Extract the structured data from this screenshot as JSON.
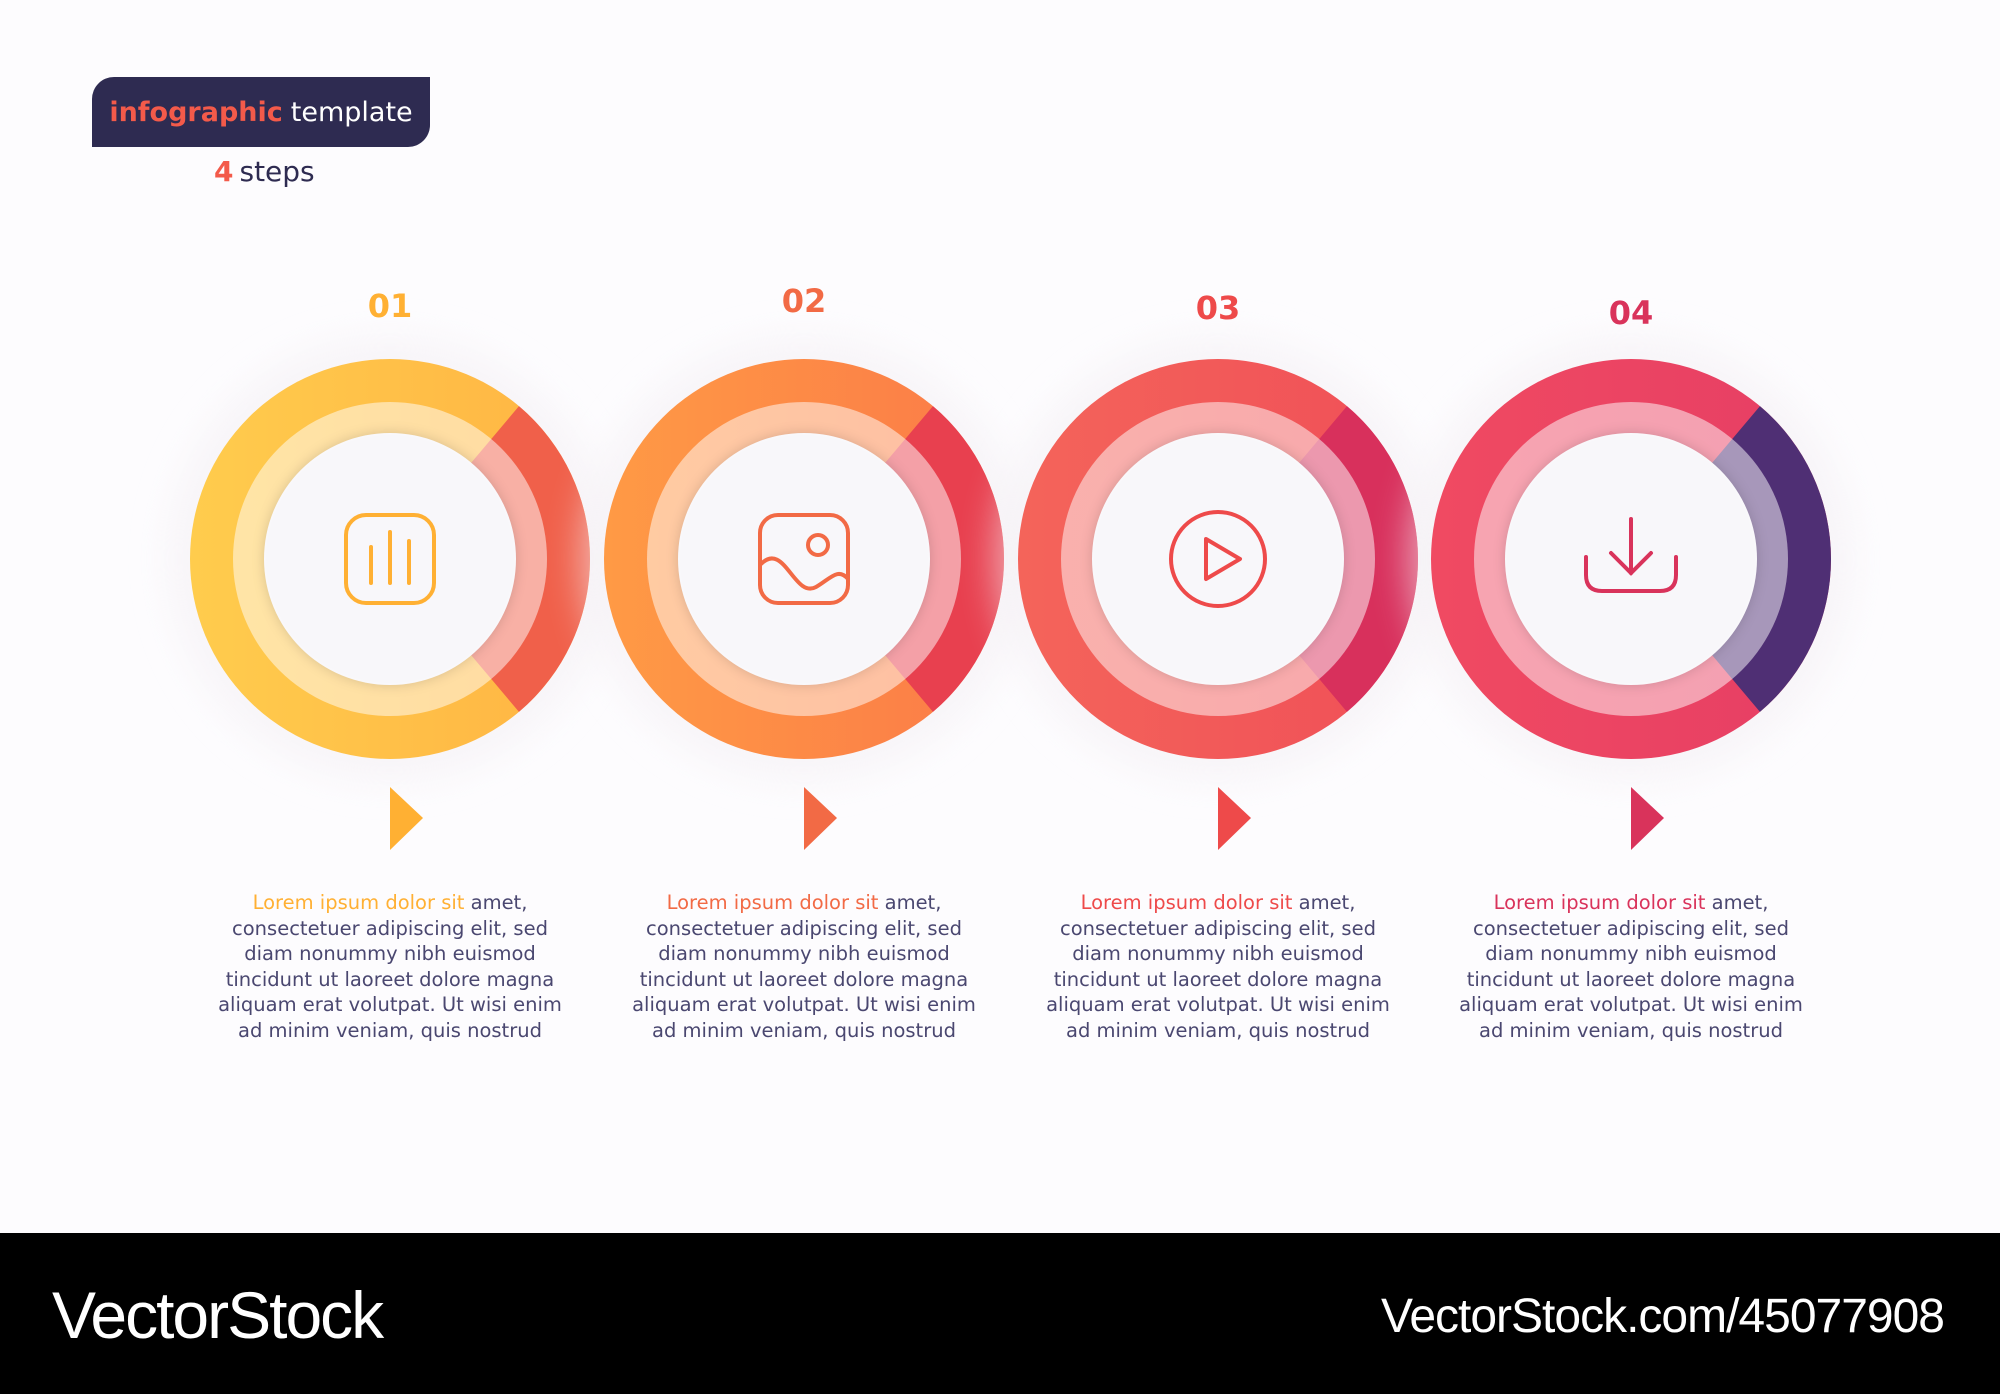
{
  "header": {
    "title_accent": "infographic",
    "title_rest": "template",
    "steps_count": "4",
    "steps_word": "steps"
  },
  "colors": {
    "header_bg": "#2e2b51",
    "accent": "#f35a4a",
    "body_text": "#4a4770"
  },
  "steps": [
    {
      "number": "01",
      "icon": "bar-chart-icon",
      "color_main": "#ffb443",
      "color_light": "#ffcc4d",
      "color_segment": "#f0604a",
      "highlight_color": "#ffb033",
      "highlight": "Lorem ipsum dolor sit",
      "lines": [
        " amet,",
        "consectetuer adipiscing elit, sed",
        "diam nonummy nibh euismod",
        "tincidunt ut laoreet dolore magna",
        "aliquam erat volutpat. Ut wisi enim",
        "ad minim veniam, quis nostrud"
      ]
    },
    {
      "number": "02",
      "icon": "image-icon",
      "color_main": "#fb7a48",
      "color_light": "#ff9a45",
      "color_segment": "#e8404f",
      "highlight_color": "#f26a45",
      "highlight": "Lorem ipsum dolor sit",
      "lines": [
        " amet,",
        "consectetuer adipiscing elit, sed",
        "diam nonummy nibh euismod",
        "tincidunt ut laoreet dolore magna",
        "aliquam erat volutpat. Ut wisi enim",
        "ad minim veniam, quis nostrud"
      ]
    },
    {
      "number": "03",
      "icon": "play-icon",
      "color_main": "#f04f58",
      "color_light": "#f4645a",
      "color_segment": "#d8305c",
      "highlight_color": "#ee4a4a",
      "highlight": "Lorem ipsum dolor sit",
      "lines": [
        " amet,",
        "consectetuer adipiscing elit, sed",
        "diam nonummy nibh euismod",
        "tincidunt ut laoreet dolore magna",
        "aliquam erat volutpat. Ut wisi enim",
        "ad minim veniam, quis nostrud"
      ]
    },
    {
      "number": "04",
      "icon": "download-icon",
      "color_main": "#e63e64",
      "color_light": "#f04a62",
      "color_segment": "#4f2f74",
      "highlight_color": "#d9335b",
      "highlight": "Lorem ipsum dolor sit",
      "lines": [
        " amet,",
        "consectetuer adipiscing elit, sed",
        "diam nonummy nibh euismod",
        "tincidunt ut laoreet dolore magna",
        "aliquam erat volutpat. Ut wisi enim",
        "ad minim veniam, quis nostrud"
      ]
    }
  ],
  "footer": {
    "brand": "VectorStock",
    "url": "VectorStock.com/45077908"
  }
}
